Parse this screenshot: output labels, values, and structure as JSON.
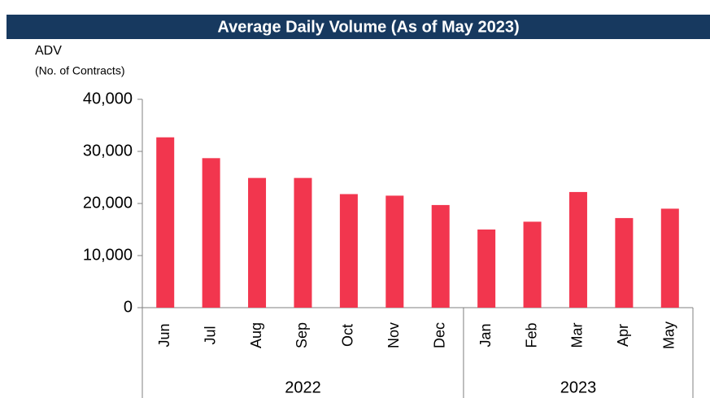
{
  "chart_data": {
    "type": "bar",
    "title": "Average Daily Volume (As of May 2023)",
    "y_label": "ADV",
    "y_sublabel": "(No. of Contracts)",
    "groups": [
      {
        "name": "2022",
        "categories": [
          "Jun",
          "Jul",
          "Aug",
          "Sep",
          "Oct",
          "Nov",
          "Dec"
        ]
      },
      {
        "name": "2023",
        "categories": [
          "Jan",
          "Feb",
          "Mar",
          "Apr",
          "May"
        ]
      }
    ],
    "values": [
      32700,
      28700,
      24900,
      24900,
      21800,
      21500,
      19700,
      15000,
      16500,
      22200,
      17200,
      19000
    ],
    "color": "#f2364e",
    "ylim": [
      0,
      40000
    ],
    "yticks": [
      0,
      {
        "value": 10000,
        "label": "10,000"
      },
      {
        "value": 20000,
        "label": "20,000"
      },
      {
        "value": 30000,
        "label": "30,000"
      },
      {
        "value": 40000,
        "label": "40,000"
      }
    ],
    "grid": false
  }
}
